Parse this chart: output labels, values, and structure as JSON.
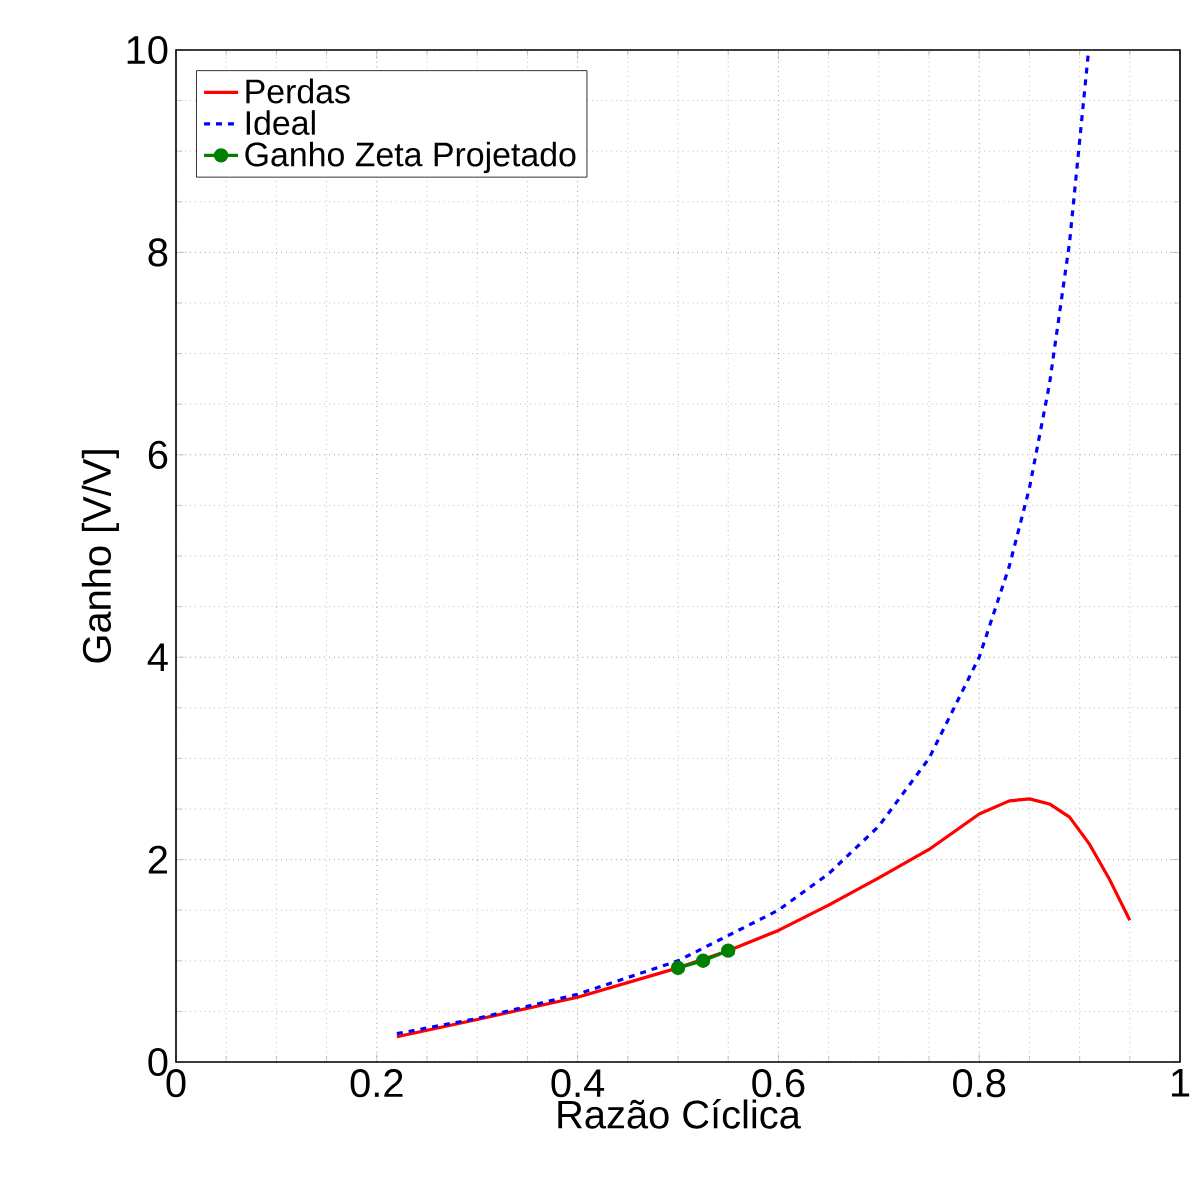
{
  "chart_data": {
    "type": "line",
    "xlabel": "Razão Cíclica",
    "ylabel": "Ganho [V/V]",
    "xlim": [
      0,
      1
    ],
    "ylim": [
      0,
      10
    ],
    "xticks": [
      0,
      0.2,
      0.4,
      0.6,
      0.8,
      1
    ],
    "yticks": [
      0,
      2,
      4,
      6,
      8,
      10
    ],
    "grid": true,
    "legend": "top left",
    "series": [
      {
        "name": "Perdas",
        "color": "#ff0000",
        "line_style": "solid",
        "marker": "none",
        "x": [
          0.22,
          0.3,
          0.4,
          0.5,
          0.55,
          0.6,
          0.65,
          0.7,
          0.75,
          0.8,
          0.83,
          0.85,
          0.87,
          0.89,
          0.91,
          0.93,
          0.95
        ],
        "values": [
          0.25,
          0.42,
          0.64,
          0.93,
          1.1,
          1.3,
          1.55,
          1.82,
          2.1,
          2.45,
          2.58,
          2.6,
          2.55,
          2.42,
          2.15,
          1.8,
          1.4
        ]
      },
      {
        "name": "Ideal",
        "color": "#0000ff",
        "line_style": "dashed",
        "marker": "none",
        "x": [
          0.22,
          0.3,
          0.4,
          0.5,
          0.6,
          0.65,
          0.7,
          0.75,
          0.8,
          0.83,
          0.85,
          0.87,
          0.89,
          0.909
        ],
        "values": [
          0.28,
          0.43,
          0.67,
          1.0,
          1.5,
          1.86,
          2.33,
          3.0,
          4.0,
          4.9,
          5.67,
          6.7,
          8.1,
          10
        ]
      },
      {
        "name": "Ganho Zeta Projetado",
        "color": "#008000",
        "line_style": "solid",
        "marker": "circle",
        "x": [
          0.5,
          0.525,
          0.55
        ],
        "values": [
          0.93,
          1.0,
          1.1
        ]
      }
    ]
  }
}
